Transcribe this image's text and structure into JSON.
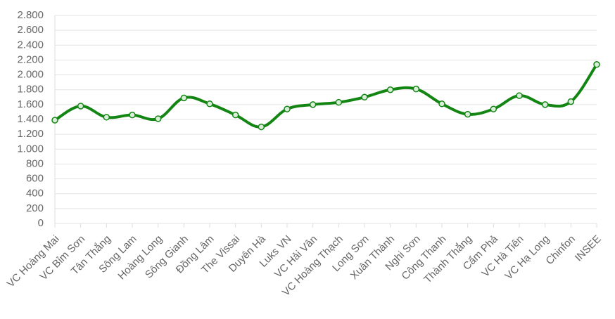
{
  "chart_data": {
    "type": "line",
    "categories": [
      "VC Hoàng Mai",
      "VC Bỉm Sơn",
      "Tân Thắng",
      "Sông Lam",
      "Hoàng Long",
      "Sông Gianh",
      "Đồng Lâm",
      "The Vissai",
      "Duyên Hà",
      "Luks VN",
      "VC Hải Vân",
      "VC Hoàng Thạch",
      "Long Sơn",
      "Xuân Thành",
      "Nghi Sơn",
      "Công Thanh",
      "Thành Thắng",
      "Cẩm Phả",
      "VC Hà Tiên",
      "VC Hạ Long",
      "Chinfon",
      "INSEE"
    ],
    "values": [
      1390,
      1580,
      1430,
      1460,
      1410,
      1690,
      1610,
      1460,
      1300,
      1540,
      1600,
      1630,
      1700,
      1800,
      1810,
      1610,
      1470,
      1540,
      1720,
      1600,
      1640,
      2140
    ],
    "color": "#128512",
    "ylim": [
      0,
      2800
    ],
    "yticks": [
      0,
      200,
      400,
      600,
      800,
      {
        "value": 1000,
        "label": "1.000"
      },
      {
        "value": 1200,
        "label": "1.200"
      },
      {
        "value": 1400,
        "label": "1.400"
      },
      {
        "value": 1600,
        "label": "1.600"
      },
      {
        "value": 1800,
        "label": "1.800"
      },
      {
        "value": 2000,
        "label": "2.000"
      },
      {
        "value": 2200,
        "label": "2.200"
      },
      {
        "value": 2400,
        "label": "2.400"
      },
      {
        "value": 2600,
        "label": "2.600"
      },
      {
        "value": 2800,
        "label": "2.800"
      }
    ],
    "grid": true
  }
}
